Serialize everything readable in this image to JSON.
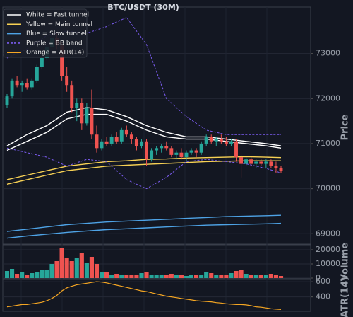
{
  "chart_data": [
    {
      "type": "candlestick",
      "title": "BTC/USDT (30M)",
      "ylabel": "Price",
      "ylim": [
        68800,
        74000
      ],
      "yticks": [
        69000,
        70000,
        71000,
        72000,
        73000
      ],
      "grid": true,
      "up_color": "#26a69a",
      "down_color": "#ef5350",
      "legend": "upper left",
      "open": [
        71850,
        72050,
        72400,
        72300,
        72350,
        72250,
        72400,
        72700,
        72900,
        73150,
        73350,
        73200,
        72500,
        72300,
        71800,
        71900,
        71450,
        71800,
        71200,
        70900,
        71050,
        71000,
        71150,
        71050,
        71300,
        71200,
        71100,
        70950,
        71050,
        70650,
        70850,
        70900,
        70950,
        70900,
        70750,
        70800,
        70700,
        70800,
        70850,
        70800,
        71000,
        71150,
        71050,
        71100,
        71050,
        71000,
        71050,
        70700,
        70550,
        70650,
        70550,
        70600,
        70550,
        70600,
        70500,
        70450
      ],
      "high": [
        72100,
        72450,
        72500,
        72400,
        72450,
        72450,
        72750,
        73000,
        73250,
        73500,
        73450,
        73250,
        72700,
        72400,
        72000,
        72000,
        71900,
        72200,
        71400,
        71100,
        71150,
        71200,
        71250,
        71350,
        71400,
        71250,
        71150,
        71100,
        71100,
        70900,
        70950,
        71000,
        71050,
        70950,
        70850,
        70900,
        70850,
        70900,
        70900,
        71050,
        71200,
        71200,
        71150,
        71200,
        71150,
        71100,
        71100,
        70750,
        70700,
        70700,
        70650,
        70650,
        70650,
        70650,
        70600,
        70500
      ],
      "low": [
        71800,
        72000,
        72250,
        72150,
        72200,
        72200,
        72350,
        72650,
        72850,
        73050,
        73100,
        72400,
        72150,
        71700,
        71500,
        71300,
        71400,
        71100,
        70800,
        70850,
        70950,
        70950,
        71000,
        71000,
        71150,
        71000,
        70850,
        70900,
        70500,
        70600,
        70750,
        70800,
        70850,
        70700,
        70650,
        70650,
        70600,
        70750,
        70700,
        70750,
        70950,
        71000,
        70950,
        71000,
        70950,
        70950,
        70600,
        70250,
        70500,
        70500,
        70450,
        70500,
        70450,
        70450,
        70350,
        70350
      ],
      "close": [
        72050,
        72400,
        72300,
        72350,
        72250,
        72400,
        72700,
        72900,
        73150,
        73350,
        73200,
        72500,
        72300,
        71800,
        71900,
        71450,
        71800,
        71200,
        70900,
        71050,
        71000,
        71150,
        71050,
        71300,
        71200,
        71100,
        70950,
        71050,
        70650,
        70850,
        70900,
        70950,
        70900,
        70750,
        70800,
        70700,
        70800,
        70850,
        70800,
        71000,
        71150,
        71050,
        71100,
        71050,
        71000,
        71050,
        70700,
        70550,
        70650,
        70550,
        70600,
        70550,
        70600,
        70500,
        70450,
        70400
      ],
      "series": [
        {
          "name": "White = Fast tunnel",
          "color": "#ffffff",
          "x": [
            0,
            4,
            8,
            12,
            16,
            20,
            24,
            28,
            32,
            36,
            40,
            44,
            48,
            52,
            55
          ],
          "upper": [
            70950,
            71200,
            71400,
            71700,
            71800,
            71750,
            71600,
            71400,
            71250,
            71150,
            71150,
            71100,
            71050,
            71000,
            70950
          ],
          "lower": [
            70850,
            71050,
            71250,
            71550,
            71650,
            71650,
            71500,
            71300,
            71150,
            71100,
            71100,
            71050,
            71000,
            70950,
            70900
          ]
        },
        {
          "name": "Yellow = Main tunnel",
          "color": "#f7d154",
          "x": [
            0,
            4,
            8,
            12,
            16,
            20,
            24,
            28,
            32,
            36,
            40,
            44,
            48,
            52,
            55
          ],
          "upper": [
            70200,
            70300,
            70400,
            70500,
            70550,
            70600,
            70620,
            70650,
            70660,
            70680,
            70690,
            70700,
            70710,
            70700,
            70690
          ],
          "lower": [
            70100,
            70200,
            70300,
            70400,
            70450,
            70500,
            70520,
            70540,
            70560,
            70580,
            70600,
            70610,
            70620,
            70620,
            70620
          ]
        },
        {
          "name": "Blue = Slow tunnel",
          "color": "#4ea3e6",
          "x": [
            0,
            4,
            8,
            12,
            16,
            20,
            24,
            28,
            32,
            36,
            40,
            44,
            48,
            52,
            55
          ],
          "upper": [
            69050,
            69100,
            69150,
            69200,
            69230,
            69260,
            69280,
            69300,
            69320,
            69340,
            69360,
            69380,
            69390,
            69400,
            69410
          ],
          "lower": [
            68900,
            68950,
            68990,
            69030,
            69060,
            69090,
            69110,
            69130,
            69150,
            69170,
            69190,
            69200,
            69210,
            69220,
            69230
          ]
        },
        {
          "name": "Purple = BB band",
          "color": "#7b5cf0",
          "dashed": true,
          "x": [
            0,
            4,
            8,
            12,
            16,
            20,
            24,
            28,
            32,
            36,
            40,
            44,
            48,
            52,
            55
          ],
          "upper": [
            72900,
            73100,
            73400,
            73500,
            73450,
            73600,
            73800,
            73200,
            72000,
            71600,
            71300,
            71200,
            71200,
            71200,
            71200
          ],
          "lower": [
            70900,
            70800,
            70700,
            70500,
            70650,
            70600,
            70200,
            70000,
            70250,
            70600,
            70650,
            70600,
            70550,
            70450,
            70350
          ]
        }
      ]
    },
    {
      "type": "bar",
      "ylabel": "Volume",
      "ylim": [
        0,
        23000
      ],
      "yticks": [
        0,
        10000,
        20000
      ],
      "values": [
        5000,
        6500,
        3000,
        4000,
        2500,
        3500,
        4000,
        5500,
        6000,
        10000,
        12000,
        21000,
        14000,
        12000,
        14000,
        18000,
        11000,
        15000,
        10000,
        4000,
        4500,
        2500,
        3000,
        2500,
        2000,
        2000,
        2500,
        3500,
        4500,
        2000,
        2500,
        2000,
        2000,
        3000,
        2500,
        2500,
        1500,
        2000,
        2500,
        2500,
        4500,
        3500,
        2500,
        2000,
        2000,
        3500,
        5000,
        6000,
        3000,
        2500,
        2500,
        2000,
        2000,
        3000,
        2000,
        1500
      ]
    },
    {
      "type": "line",
      "ylabel": "ATR(14)",
      "ylim": [
        220,
        620
      ],
      "yticks": [
        400,
        600
      ],
      "series": [
        {
          "name": "Orange = ATR(14)",
          "color": "#f5a623",
          "values": [
            270,
            280,
            290,
            300,
            300,
            310,
            320,
            330,
            350,
            380,
            420,
            480,
            520,
            540,
            560,
            570,
            580,
            590,
            600,
            595,
            585,
            570,
            555,
            540,
            525,
            510,
            495,
            480,
            470,
            455,
            440,
            425,
            410,
            400,
            390,
            380,
            370,
            360,
            350,
            345,
            340,
            335,
            325,
            320,
            310,
            305,
            300,
            300,
            295,
            285,
            270,
            265,
            255,
            245,
            240,
            235
          ]
        }
      ]
    }
  ]
}
